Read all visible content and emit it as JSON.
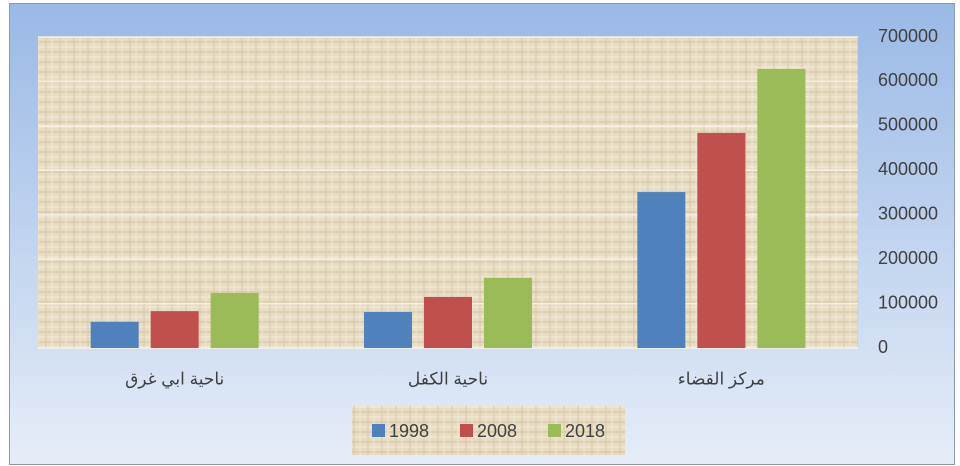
{
  "chart_data": {
    "type": "bar",
    "categories": [
      "مركز القضاء",
      "ناحية الكفل",
      "ناحية ابي غرق"
    ],
    "series": [
      {
        "name": "1998",
        "color": "#4f81bd",
        "values": [
          351000,
          81000,
          59000
        ]
      },
      {
        "name": "2008",
        "color": "#c0504d",
        "values": [
          484000,
          115000,
          83000
        ]
      },
      {
        "name": "2018",
        "color": "#9bbb59",
        "values": [
          628000,
          158000,
          124000
        ]
      }
    ],
    "ylim": [
      0,
      700000
    ],
    "yticks": [
      0,
      100000,
      200000,
      300000,
      400000,
      500000,
      600000,
      700000
    ],
    "grid": true,
    "axis_side": "right",
    "reverse_categories": true,
    "legend": "bottom"
  }
}
